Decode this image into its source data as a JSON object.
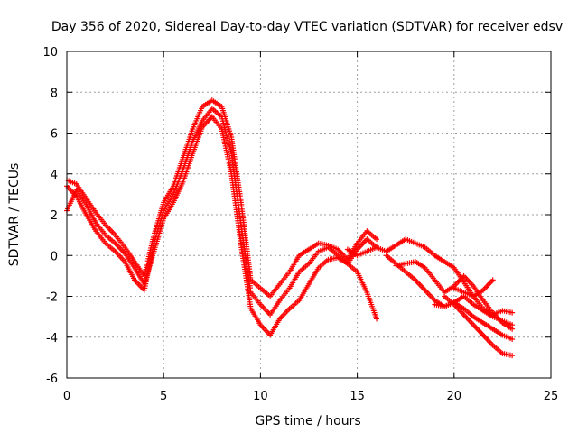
{
  "chart_data": {
    "type": "scatter",
    "title": "Day 356 of 2020, Sidereal Day-to-day VTEC variation (SDTVAR) for receiver edsv",
    "xlabel": "GPS time / hours",
    "ylabel": "SDTVAR / TECUs",
    "xlim": [
      0,
      25
    ],
    "ylim": [
      -6,
      10
    ],
    "xticks": [
      "0",
      "5",
      "10",
      "15",
      "20",
      "25"
    ],
    "yticks": [
      "-6",
      "-4",
      "-2",
      "0",
      "2",
      "4",
      "6",
      "8",
      "10"
    ],
    "grid": true,
    "marker": "+",
    "color": "#ff0000",
    "series": [
      {
        "name": "track-1",
        "points": [
          [
            0,
            2.2
          ],
          [
            0.5,
            3.2
          ],
          [
            1,
            2.5
          ],
          [
            1.5,
            1.6
          ],
          [
            2,
            1.0
          ],
          [
            2.5,
            0.6
          ],
          [
            3,
            0.1
          ],
          [
            3.5,
            -0.6
          ],
          [
            4,
            -1.4
          ],
          [
            4.5,
            0.2
          ],
          [
            5,
            1.8
          ],
          [
            5.5,
            2.6
          ],
          [
            6,
            3.6
          ],
          [
            6.5,
            5.0
          ],
          [
            7,
            6.3
          ],
          [
            7.5,
            6.8
          ],
          [
            8,
            6.2
          ],
          [
            8.5,
            4.0
          ],
          [
            9,
            0.5
          ],
          [
            9.5,
            -2.6
          ],
          [
            10,
            -3.4
          ],
          [
            10.5,
            -3.9
          ],
          [
            11,
            -3.1
          ],
          [
            11.5,
            -2.6
          ],
          [
            12,
            -2.2
          ],
          [
            12.5,
            -1.4
          ],
          [
            13,
            -0.6
          ],
          [
            13.5,
            -0.2
          ],
          [
            14,
            -0.1
          ],
          [
            14.5,
            -0.4
          ],
          [
            15,
            -0.8
          ],
          [
            15.5,
            -1.8
          ],
          [
            16,
            -3.1
          ]
        ]
      },
      {
        "name": "track-2",
        "points": [
          [
            0,
            3.4
          ],
          [
            0.5,
            2.9
          ],
          [
            1,
            2.0
          ],
          [
            1.5,
            1.2
          ],
          [
            2,
            0.6
          ],
          [
            2.5,
            0.2
          ],
          [
            3,
            -0.3
          ],
          [
            3.5,
            -1.2
          ],
          [
            4,
            -1.7
          ],
          [
            4.5,
            0.6
          ],
          [
            5,
            2.2
          ],
          [
            5.5,
            3.0
          ],
          [
            6,
            4.2
          ],
          [
            6.5,
            5.6
          ],
          [
            7,
            6.6
          ],
          [
            7.5,
            7.2
          ],
          [
            8,
            6.8
          ],
          [
            8.5,
            5.0
          ],
          [
            9,
            1.5
          ],
          [
            9.5,
            -1.8
          ],
          [
            10,
            -2.4
          ],
          [
            10.5,
            -2.9
          ],
          [
            11,
            -2.2
          ],
          [
            11.5,
            -1.6
          ],
          [
            12,
            -0.8
          ],
          [
            12.5,
            -0.4
          ],
          [
            13,
            0.2
          ],
          [
            13.5,
            0.4
          ],
          [
            14,
            0.0
          ],
          [
            14.5,
            -0.4
          ],
          [
            15,
            0.3
          ],
          [
            15.5,
            0.8
          ],
          [
            16,
            0.4
          ]
        ]
      },
      {
        "name": "track-3",
        "points": [
          [
            0,
            3.7
          ],
          [
            0.5,
            3.5
          ],
          [
            1,
            2.8
          ],
          [
            1.5,
            2.1
          ],
          [
            2,
            1.5
          ],
          [
            2.5,
            1.0
          ],
          [
            3,
            0.4
          ],
          [
            3.5,
            -0.3
          ],
          [
            4,
            -1.0
          ],
          [
            4.5,
            1.0
          ],
          [
            5,
            2.6
          ],
          [
            5.5,
            3.4
          ],
          [
            6,
            4.8
          ],
          [
            6.5,
            6.2
          ],
          [
            7,
            7.3
          ],
          [
            7.5,
            7.6
          ],
          [
            8,
            7.3
          ],
          [
            8.5,
            5.8
          ],
          [
            9,
            2.6
          ],
          [
            9.5,
            -1.2
          ],
          [
            10,
            -1.6
          ],
          [
            10.5,
            -2.0
          ],
          [
            11,
            -1.4
          ],
          [
            11.5,
            -0.8
          ],
          [
            12,
            0.0
          ],
          [
            12.5,
            0.3
          ],
          [
            13,
            0.6
          ],
          [
            13.5,
            0.5
          ],
          [
            14,
            0.3
          ],
          [
            14.5,
            -0.2
          ],
          [
            15,
            0.6
          ],
          [
            15.5,
            1.2
          ],
          [
            16,
            0.8
          ]
        ]
      },
      {
        "name": "track-4",
        "points": [
          [
            14.5,
            0.3
          ],
          [
            15,
            0.0
          ],
          [
            15.5,
            0.2
          ],
          [
            16,
            0.4
          ],
          [
            16.5,
            0.2
          ],
          [
            17,
            0.5
          ],
          [
            17.5,
            0.8
          ],
          [
            18,
            0.6
          ],
          [
            18.5,
            0.4
          ],
          [
            19,
            0.0
          ],
          [
            19.5,
            -0.3
          ],
          [
            20,
            -0.6
          ],
          [
            20.5,
            -1.3
          ],
          [
            21,
            -2.0
          ],
          [
            21.5,
            -2.6
          ],
          [
            22,
            -2.9
          ],
          [
            22.5,
            -2.7
          ],
          [
            23,
            -2.8
          ]
        ]
      },
      {
        "name": "track-5",
        "points": [
          [
            16.5,
            0.0
          ],
          [
            17,
            -0.4
          ],
          [
            17.5,
            -0.8
          ],
          [
            18,
            -1.2
          ],
          [
            18.5,
            -1.7
          ],
          [
            19,
            -2.2
          ],
          [
            19.5,
            -2.5
          ],
          [
            20,
            -2.3
          ],
          [
            20.5,
            -2.0
          ],
          [
            21,
            -2.4
          ],
          [
            21.5,
            -2.7
          ],
          [
            22,
            -3.0
          ],
          [
            22.5,
            -3.2
          ],
          [
            23,
            -3.4
          ]
        ]
      },
      {
        "name": "track-6",
        "points": [
          [
            17,
            -0.5
          ],
          [
            17.5,
            -0.4
          ],
          [
            18,
            -0.3
          ],
          [
            18.5,
            -0.6
          ],
          [
            19,
            -1.2
          ],
          [
            19.5,
            -1.8
          ],
          [
            20,
            -1.5
          ],
          [
            20.5,
            -1.0
          ],
          [
            21,
            -1.5
          ],
          [
            21.5,
            -2.2
          ],
          [
            22,
            -2.8
          ],
          [
            22.5,
            -3.3
          ],
          [
            23,
            -3.6
          ]
        ]
      },
      {
        "name": "track-7",
        "points": [
          [
            19,
            -2.4
          ],
          [
            19.5,
            -2.5
          ],
          [
            20,
            -2.3
          ],
          [
            20.5,
            -2.6
          ],
          [
            21,
            -3.0
          ],
          [
            21.5,
            -3.3
          ],
          [
            22,
            -3.6
          ],
          [
            22.5,
            -3.9
          ],
          [
            23,
            -4.1
          ]
        ]
      },
      {
        "name": "track-8",
        "points": [
          [
            19.5,
            -2.0
          ],
          [
            20,
            -2.4
          ],
          [
            20.5,
            -2.9
          ],
          [
            21,
            -3.4
          ],
          [
            21.5,
            -3.9
          ],
          [
            22,
            -4.4
          ],
          [
            22.5,
            -4.8
          ],
          [
            23,
            -4.9
          ]
        ]
      },
      {
        "name": "track-9",
        "points": [
          [
            20,
            -1.6
          ],
          [
            20.5,
            -1.8
          ],
          [
            21,
            -2.0
          ],
          [
            21.5,
            -1.7
          ],
          [
            22,
            -1.2
          ]
        ]
      }
    ]
  }
}
